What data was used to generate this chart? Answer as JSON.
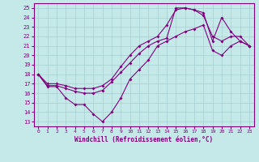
{
  "xlabel": "Windchill (Refroidissement éolien,°C)",
  "bg_color": "#c5e8e8",
  "line_color": "#800080",
  "grid_color": "#a8d0d0",
  "axis_color": "#800080",
  "tick_color": "#800080",
  "xlim": [
    -0.5,
    23.5
  ],
  "ylim": [
    12.5,
    25.5
  ],
  "xticks": [
    0,
    1,
    2,
    3,
    4,
    5,
    6,
    7,
    8,
    9,
    10,
    11,
    12,
    13,
    14,
    15,
    16,
    17,
    18,
    19,
    20,
    21,
    22,
    23
  ],
  "yticks": [
    13,
    14,
    15,
    16,
    17,
    18,
    19,
    20,
    21,
    22,
    23,
    24,
    25
  ],
  "series1_x": [
    0,
    1,
    2,
    3,
    4,
    5,
    6,
    7,
    8,
    9,
    10,
    11,
    12,
    13,
    14,
    15,
    16,
    17,
    18,
    19,
    20,
    21,
    22,
    23
  ],
  "series1_y": [
    18,
    16.7,
    16.7,
    15.5,
    14.8,
    14.8,
    13.8,
    13.0,
    14.0,
    15.5,
    17.5,
    18.5,
    19.5,
    21.0,
    21.5,
    22.0,
    22.5,
    22.8,
    23.2,
    20.5,
    20.0,
    21.0,
    21.5,
    21.0
  ],
  "series2_x": [
    0,
    1,
    2,
    3,
    4,
    5,
    6,
    7,
    8,
    9,
    10,
    11,
    12,
    13,
    14,
    15,
    16,
    17,
    18,
    19,
    20,
    21,
    22,
    23
  ],
  "series2_y": [
    18,
    16.8,
    16.8,
    16.5,
    16.2,
    16.0,
    16.0,
    16.3,
    17.2,
    18.2,
    19.2,
    20.2,
    21.0,
    21.5,
    21.8,
    25.0,
    25.0,
    24.8,
    24.5,
    21.5,
    24.0,
    22.5,
    21.5,
    21.0
  ],
  "series3_x": [
    0,
    1,
    2,
    3,
    4,
    5,
    6,
    7,
    8,
    9,
    10,
    11,
    12,
    13,
    14,
    15,
    16,
    17,
    18,
    19,
    20,
    21,
    22,
    23
  ],
  "series3_y": [
    18,
    17.0,
    17.0,
    16.8,
    16.5,
    16.5,
    16.5,
    16.8,
    17.5,
    18.8,
    20.0,
    21.0,
    21.5,
    22.0,
    23.2,
    24.8,
    25.0,
    24.8,
    24.2,
    22.0,
    21.5,
    22.0,
    22.0,
    21.0
  ]
}
